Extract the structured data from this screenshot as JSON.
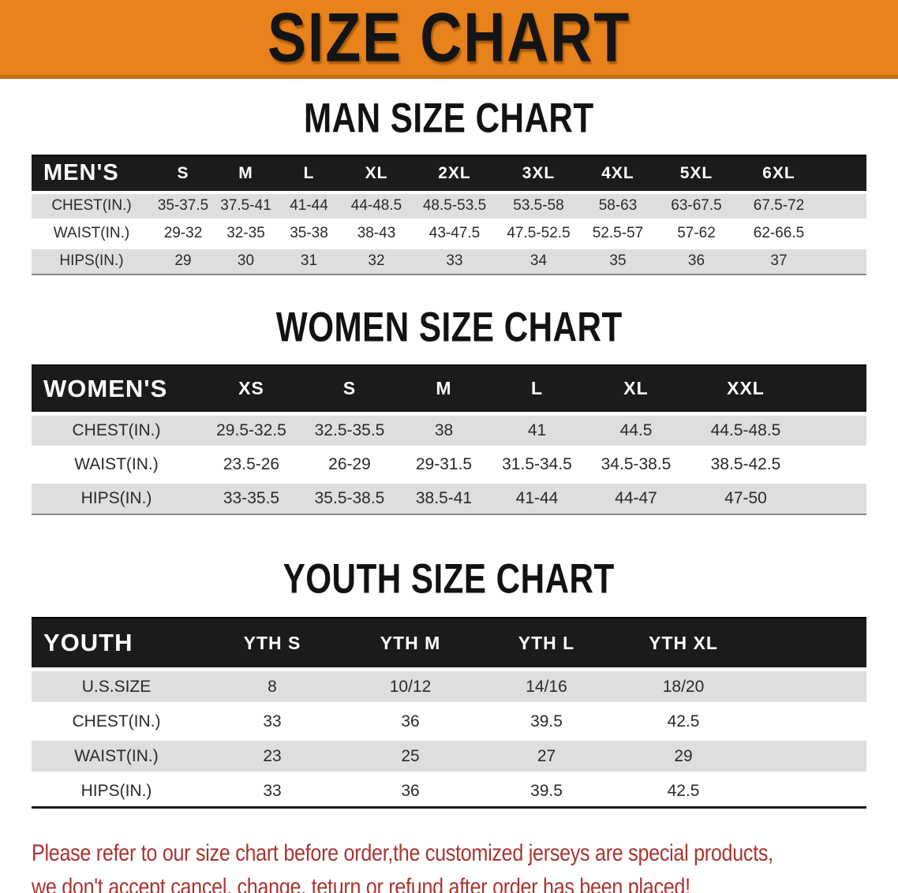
{
  "banner": {
    "title": "SIZE CHART",
    "background": "#E8821B"
  },
  "sections": [
    {
      "id": "men",
      "heading": "MAN SIZE CHART",
      "label": "MEN'S",
      "columns": [
        "S",
        "M",
        "L",
        "XL",
        "2XL",
        "3XL",
        "4XL",
        "5XL",
        "6XL"
      ],
      "rows": [
        {
          "label": "CHEST(IN.)",
          "values": [
            "35-37.5",
            "37.5-41",
            "41-44",
            "44-48.5",
            "48.5-53.5",
            "53.5-58",
            "58-63",
            "63-67.5",
            "67.5-72"
          ]
        },
        {
          "label": "WAIST(IN.)",
          "values": [
            "29-32",
            "32-35",
            "35-38",
            "38-43",
            "43-47.5",
            "47.5-52.5",
            "52.5-57",
            "57-62",
            "62-66.5"
          ]
        },
        {
          "label": "HIPS(IN.)",
          "values": [
            "29",
            "30",
            "31",
            "32",
            "33",
            "34",
            "35",
            "36",
            "37"
          ]
        }
      ]
    },
    {
      "id": "women",
      "heading": "WOMEN SIZE CHART",
      "label": "WOMEN'S",
      "columns": [
        "XS",
        "S",
        "M",
        "L",
        "XL",
        "XXL"
      ],
      "rows": [
        {
          "label": "CHEST(IN.)",
          "values": [
            "29.5-32.5",
            "32.5-35.5",
            "38",
            "41",
            "44.5",
            "44.5-48.5"
          ]
        },
        {
          "label": "WAIST(IN.)",
          "values": [
            "23.5-26",
            "26-29",
            "29-31.5",
            "31.5-34.5",
            "34.5-38.5",
            "38.5-42.5"
          ]
        },
        {
          "label": "HIPS(IN.)",
          "values": [
            "33-35.5",
            "35.5-38.5",
            "38.5-41",
            "41-44",
            "44-47",
            "47-50"
          ]
        }
      ]
    },
    {
      "id": "youth",
      "heading": "YOUTH SIZE CHART",
      "label": "YOUTH",
      "columns": [
        "YTH S",
        "YTH M",
        "YTH L",
        "YTH XL"
      ],
      "rows": [
        {
          "label": "U.S.SIZE",
          "values": [
            "8",
            "10/12",
            "14/16",
            "18/20"
          ]
        },
        {
          "label": "CHEST(IN.)",
          "values": [
            "33",
            "36",
            "39.5",
            "42.5"
          ]
        },
        {
          "label": "WAIST(IN.)",
          "values": [
            "23",
            "25",
            "27",
            "29"
          ]
        },
        {
          "label": "HIPS(IN.)",
          "values": [
            "33",
            "36",
            "39.5",
            "42.5"
          ]
        }
      ]
    }
  ],
  "footer": {
    "line1": "Please refer to our size chart before order,the customized jerseys are special products,",
    "line2": "we don't accept cancel, change, teturn or refund after order has been placed!",
    "color": "#A93430"
  },
  "colors": {
    "banner_orange": "#E8821B",
    "header_band_black": "#1B1B1B",
    "row_stripe_gray": "#DEDEDE",
    "warning_red": "#A93430"
  }
}
